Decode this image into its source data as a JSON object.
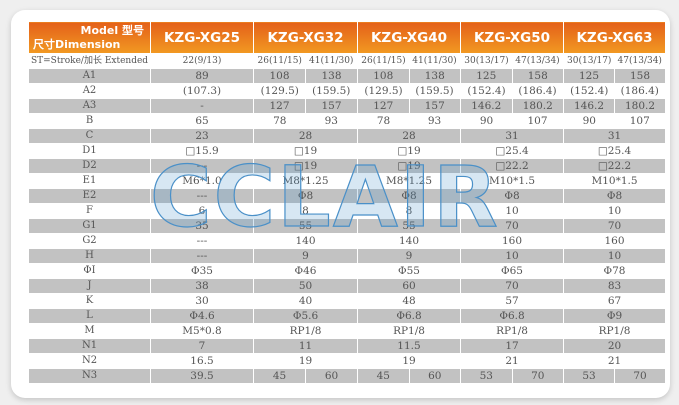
{
  "header": {
    "model_label": "Model 型号",
    "dimension_label": "尺寸Dimension",
    "models": [
      "KZG-XG25",
      "KZG-XG32",
      "KZG-XG40",
      "KZG-XG50",
      "KZG-XG63"
    ]
  },
  "watermark": "CCLAIR",
  "colors": {
    "header_top": "#e4601a",
    "header_bottom": "#f29a22",
    "row_gray": "#c2c2c2",
    "watermark": "#4a90c8"
  },
  "rows": [
    {
      "label": "ST=Stroke/加长 Extended",
      "values": [
        "22(9/13)",
        [
          "26(11/15)",
          "41(11/30)"
        ],
        [
          "26(11/15)",
          "41(11/30)"
        ],
        [
          "30(13/17)",
          "47(13/34)"
        ],
        [
          "30(13/17)",
          "47(13/34)"
        ]
      ]
    },
    {
      "label": "A1",
      "values": [
        "89",
        [
          "108",
          "138"
        ],
        [
          "108",
          "138"
        ],
        [
          "125",
          "158"
        ],
        [
          "125",
          "158"
        ]
      ]
    },
    {
      "label": "A2",
      "values": [
        "(107.3)",
        [
          "(129.5)",
          "(159.5)"
        ],
        [
          "(129.5)",
          "(159.5)"
        ],
        [
          "(152.4)",
          "(186.4)"
        ],
        [
          "(152.4)",
          "(186.4)"
        ]
      ]
    },
    {
      "label": "A3",
      "values": [
        "-",
        [
          "127",
          "157"
        ],
        [
          "127",
          "157"
        ],
        [
          "146.2",
          "180.2"
        ],
        [
          "146.2",
          "180.2"
        ]
      ]
    },
    {
      "label": "B",
      "values": [
        "65",
        [
          "78",
          "93"
        ],
        [
          "78",
          "93"
        ],
        [
          "90",
          "107"
        ],
        [
          "90",
          "107"
        ]
      ]
    },
    {
      "label": "C",
      "values": [
        "23",
        "28",
        "28",
        "31",
        "31"
      ]
    },
    {
      "label": "D1",
      "values": [
        "□15.9",
        "□19",
        "□19",
        "□25.4",
        "□25.4"
      ]
    },
    {
      "label": "D2",
      "values": [
        "---",
        "□19",
        "□19",
        "□22.2",
        "□22.2"
      ]
    },
    {
      "label": "E1",
      "values": [
        "M6*1.0",
        "M8*1.25",
        "M8*1.25",
        "M10*1.5",
        "M10*1.5"
      ]
    },
    {
      "label": "E2",
      "values": [
        "---",
        "Φ8",
        "Φ8",
        "Φ8",
        "Φ8"
      ]
    },
    {
      "label": "F",
      "values": [
        "6",
        "8",
        "8",
        "10",
        "10"
      ]
    },
    {
      "label": "G1",
      "values": [
        "35",
        "55",
        "55",
        "70",
        "70"
      ]
    },
    {
      "label": "G2",
      "values": [
        "---",
        "140",
        "140",
        "160",
        "160"
      ]
    },
    {
      "label": "H",
      "values": [
        "---",
        "9",
        "9",
        "10",
        "10"
      ]
    },
    {
      "label": "ΦI",
      "values": [
        "Φ35",
        "Φ46",
        "Φ55",
        "Φ65",
        "Φ78"
      ]
    },
    {
      "label": "J",
      "values": [
        "38",
        "50",
        "60",
        "70",
        "83"
      ]
    },
    {
      "label": "K",
      "values": [
        "30",
        "40",
        "48",
        "57",
        "67"
      ]
    },
    {
      "label": "L",
      "values": [
        "Φ4.6",
        "Φ5.6",
        "Φ6.8",
        "Φ6.8",
        "Φ9"
      ]
    },
    {
      "label": "M",
      "values": [
        "M5*0.8",
        "RP1/8",
        "RP1/8",
        "RP1/8",
        "RP1/8"
      ]
    },
    {
      "label": "N1",
      "values": [
        "7",
        "11",
        "11.5",
        "17",
        "20"
      ]
    },
    {
      "label": "N2",
      "values": [
        "16.5",
        "19",
        "19",
        "21",
        "21"
      ]
    },
    {
      "label": "N3",
      "values": [
        "39.5",
        [
          "45",
          "60"
        ],
        [
          "45",
          "60"
        ],
        [
          "53",
          "70"
        ],
        [
          "53",
          "70"
        ]
      ]
    }
  ]
}
